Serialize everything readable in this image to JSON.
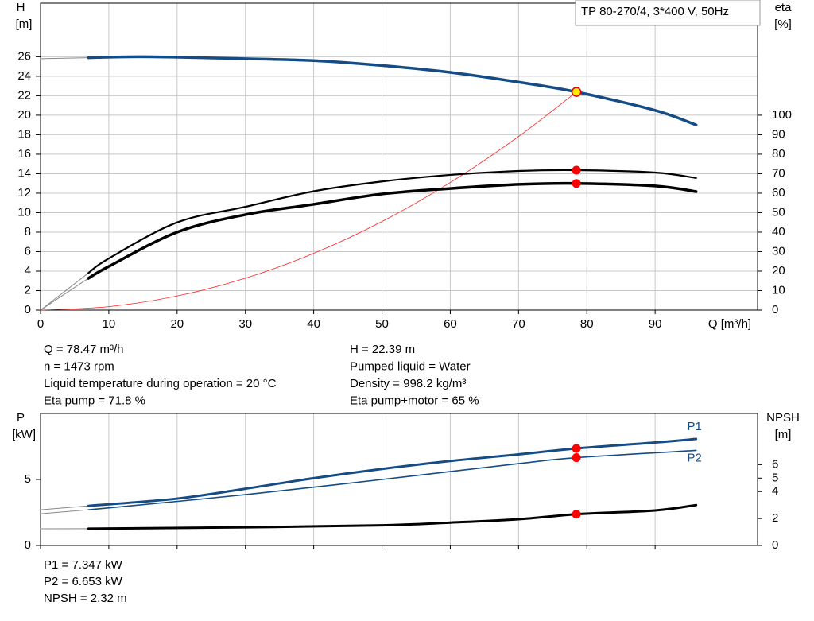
{
  "chart_data": [
    {
      "type": "line",
      "legend_text": "TP 80-270/4, 3*400 V, 50Hz",
      "ylabel": [
        "H",
        "[m]"
      ],
      "y2label": [
        "eta",
        "[%]"
      ],
      "xlabel": "Q [m³/h]",
      "xlim": [
        0,
        105
      ],
      "xticks": [
        0,
        10,
        20,
        30,
        40,
        50,
        60,
        70,
        80,
        90
      ],
      "ylim": [
        0,
        31.5
      ],
      "yticks": [
        0,
        2,
        4,
        6,
        8,
        10,
        12,
        14,
        16,
        18,
        20,
        22,
        24,
        26
      ],
      "y2lim": [
        0,
        157.5
      ],
      "y2ticks": [
        0,
        10,
        20,
        30,
        40,
        50,
        60,
        70,
        80,
        90,
        100
      ],
      "grid": "both",
      "series": [
        {
          "color": "#888888",
          "width": 1,
          "x": [
            0,
            7
          ],
          "values": [
            25.8,
            25.9
          ]
        },
        {
          "color": "#154c85",
          "width": 3.5,
          "x": [
            7,
            15,
            30,
            40,
            50,
            60,
            70,
            78.47,
            90,
            96
          ],
          "values": [
            25.9,
            26.0,
            25.8,
            25.6,
            25.1,
            24.4,
            23.4,
            22.39,
            20.5,
            19.0
          ]
        },
        {
          "color": "#ff2020",
          "width": 0.8,
          "x": [
            0,
            10,
            20,
            30,
            40,
            50,
            60,
            70,
            78.47
          ],
          "values": [
            0,
            0.36,
            1.45,
            3.27,
            5.82,
            9.09,
            13.09,
            17.82,
            22.39
          ]
        },
        {
          "color": "#888888",
          "width": 1,
          "axis": "y2",
          "x": [
            0,
            7
          ],
          "values": [
            0,
            19
          ]
        },
        {
          "color": "#000000",
          "width": 2.2,
          "axis": "y2",
          "x": [
            7,
            10,
            20,
            30,
            40,
            50,
            60,
            70,
            78.47,
            90,
            96
          ],
          "values": [
            19,
            26.5,
            45,
            53,
            61,
            66,
            69.4,
            71.4,
            71.8,
            70.6,
            67.8
          ]
        },
        {
          "color": "#888888",
          "width": 1,
          "axis": "y2",
          "x": [
            0,
            7
          ],
          "values": [
            0,
            16.3
          ]
        },
        {
          "color": "#000000",
          "width": 3.5,
          "axis": "y2",
          "x": [
            7,
            10,
            20,
            30,
            40,
            50,
            60,
            70,
            78.47,
            90,
            96
          ],
          "values": [
            16.3,
            22.4,
            40,
            49,
            54.3,
            59.6,
            62.4,
            64.5,
            65,
            63.7,
            60.8
          ]
        }
      ],
      "markers": [
        {
          "x": 78.47,
          "y": 22.39,
          "color": "#ffee00"
        },
        {
          "x": 78.47,
          "y": 71.8,
          "axis": "y2",
          "color": "#ff0000"
        },
        {
          "x": 78.47,
          "y": 65,
          "axis": "y2",
          "color": "#ff0000"
        }
      ]
    },
    {
      "type": "line",
      "ylabel": [
        "P",
        "[kW]"
      ],
      "y2label": [
        "NPSH",
        "[m]"
      ],
      "xlim": [
        0,
        105
      ],
      "xticks": [
        0,
        10,
        20,
        30,
        40,
        50,
        60,
        70,
        80,
        90
      ],
      "ylim": [
        0,
        10
      ],
      "yticks": [
        0,
        5
      ],
      "y2lim": [
        0,
        9.8
      ],
      "y2ticks": [
        0,
        2,
        4,
        5,
        6
      ],
      "grid": "x",
      "series": [
        {
          "color": "#888888",
          "width": 1,
          "x": [
            0,
            7
          ],
          "values": [
            2.7,
            3.0
          ]
        },
        {
          "name": "P1",
          "color": "#154c85",
          "width": 3,
          "x": [
            7,
            20,
            30,
            40,
            50,
            60,
            70,
            78.47,
            90,
            96
          ],
          "values": [
            3.0,
            3.55,
            4.3,
            5.1,
            5.8,
            6.4,
            6.9,
            7.347,
            7.8,
            8.07
          ]
        },
        {
          "color": "#888888",
          "width": 1,
          "x": [
            0,
            7
          ],
          "values": [
            2.4,
            2.7
          ]
        },
        {
          "name": "P2",
          "color": "#154c85",
          "width": 1.6,
          "x": [
            7,
            30,
            50,
            70,
            78.47,
            96
          ],
          "values": [
            2.7,
            3.85,
            5.0,
            6.2,
            6.653,
            7.2
          ]
        },
        {
          "color": "#888888",
          "width": 1,
          "axis": "y2",
          "x": [
            0,
            7
          ],
          "values": [
            1.24,
            1.25
          ]
        },
        {
          "color": "#000000",
          "width": 3,
          "axis": "y2",
          "x": [
            7,
            30,
            50,
            60,
            70,
            78.47,
            90,
            96
          ],
          "values": [
            1.25,
            1.35,
            1.5,
            1.7,
            1.95,
            2.32,
            2.6,
            3.0
          ]
        }
      ],
      "markers": [
        {
          "x": 78.47,
          "y": 7.347,
          "color": "#ff0000"
        },
        {
          "x": 78.47,
          "y": 6.653,
          "color": "#ff0000"
        },
        {
          "x": 78.47,
          "y": 2.32,
          "axis": "y2",
          "color": "#ff0000"
        }
      ]
    }
  ],
  "info_top_left": [
    "Q = 78.47 m³/h",
    "n = 1473 rpm",
    "Liquid temperature during operation = 20 °C",
    "Eta pump = 71.8 %"
  ],
  "info_top_right": [
    "H = 22.39 m",
    "Pumped liquid = Water",
    "Density = 998.2 kg/m³",
    "Eta pump+motor = 65 %"
  ],
  "info_bottom": [
    "P1 = 7.347 kW",
    "P2 = 6.653 kW",
    "NPSH = 2.32 m"
  ]
}
